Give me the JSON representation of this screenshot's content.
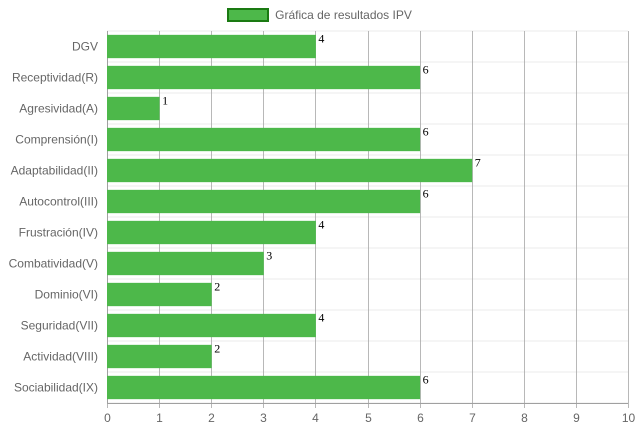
{
  "chart_data": {
    "type": "bar",
    "orientation": "horizontal",
    "legend": {
      "label": "Gráfica de resultados IPV",
      "placement": "top-center"
    },
    "categories": [
      "DGV",
      "Receptividad(R)",
      "Agresividad(A)",
      "Comprensión(I)",
      "Adaptabilidad(II)",
      "Autocontrol(III)",
      "Frustración(IV)",
      "Combatividad(V)",
      "Dominio(VI)",
      "Seguridad(VII)",
      "Actividad(VIII)",
      "Sociabilidad(IX)"
    ],
    "series": [
      {
        "name": "Gráfica de resultados IPV",
        "values": [
          4,
          6,
          1,
          6,
          7,
          6,
          4,
          3,
          2,
          4,
          2,
          6
        ]
      }
    ],
    "xlim": [
      0,
      10
    ],
    "x_ticks": [
      "0",
      "1",
      "2",
      "3",
      "4",
      "5",
      "6",
      "7",
      "8",
      "9",
      "10"
    ],
    "grid": true,
    "show_value_labels": true,
    "colors": {
      "bar_fill": "#4db84a",
      "bar_border": "#1a7a12",
      "grid_vertical": "#a0a0a0",
      "grid_horizontal": "#ebebeb",
      "axis_text": "#666666",
      "value_text": "#000000"
    }
  }
}
